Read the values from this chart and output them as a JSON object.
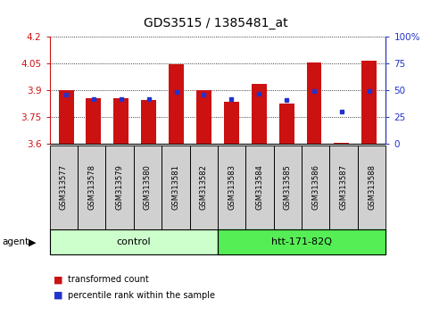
{
  "title": "GDS3515 / 1385481_at",
  "samples": [
    "GSM313577",
    "GSM313578",
    "GSM313579",
    "GSM313580",
    "GSM313581",
    "GSM313582",
    "GSM313583",
    "GSM313584",
    "GSM313585",
    "GSM313586",
    "GSM313587",
    "GSM313588"
  ],
  "bar_values": [
    3.9,
    3.855,
    3.857,
    3.845,
    4.045,
    3.9,
    3.835,
    3.935,
    3.825,
    4.055,
    3.605,
    4.062
  ],
  "blue_values": [
    3.877,
    3.848,
    3.848,
    3.85,
    3.887,
    3.877,
    3.848,
    3.878,
    3.843,
    3.892,
    3.782,
    3.892
  ],
  "ylim_left": [
    3.6,
    4.2
  ],
  "ylim_right": [
    0,
    100
  ],
  "yticks_left": [
    3.6,
    3.75,
    3.9,
    4.05,
    4.2
  ],
  "yticks_right": [
    0,
    25,
    50,
    75,
    100
  ],
  "ytick_labels_left": [
    "3.6",
    "3.75",
    "3.9",
    "4.05",
    "4.2"
  ],
  "ytick_labels_right": [
    "0",
    "25",
    "50",
    "75",
    "100%"
  ],
  "bar_color": "#cc1111",
  "blue_color": "#2233cc",
  "base_value": 3.6,
  "group1_label": "control",
  "group2_label": "htt-171-82Q",
  "group1_color": "#ccffcc",
  "group2_color": "#55ee55",
  "agent_label": "agent",
  "legend1": "transformed count",
  "legend2": "percentile rank within the sample",
  "grid_color": "black",
  "sample_bg_color": "#d0d0d0",
  "plot_bg": "white"
}
